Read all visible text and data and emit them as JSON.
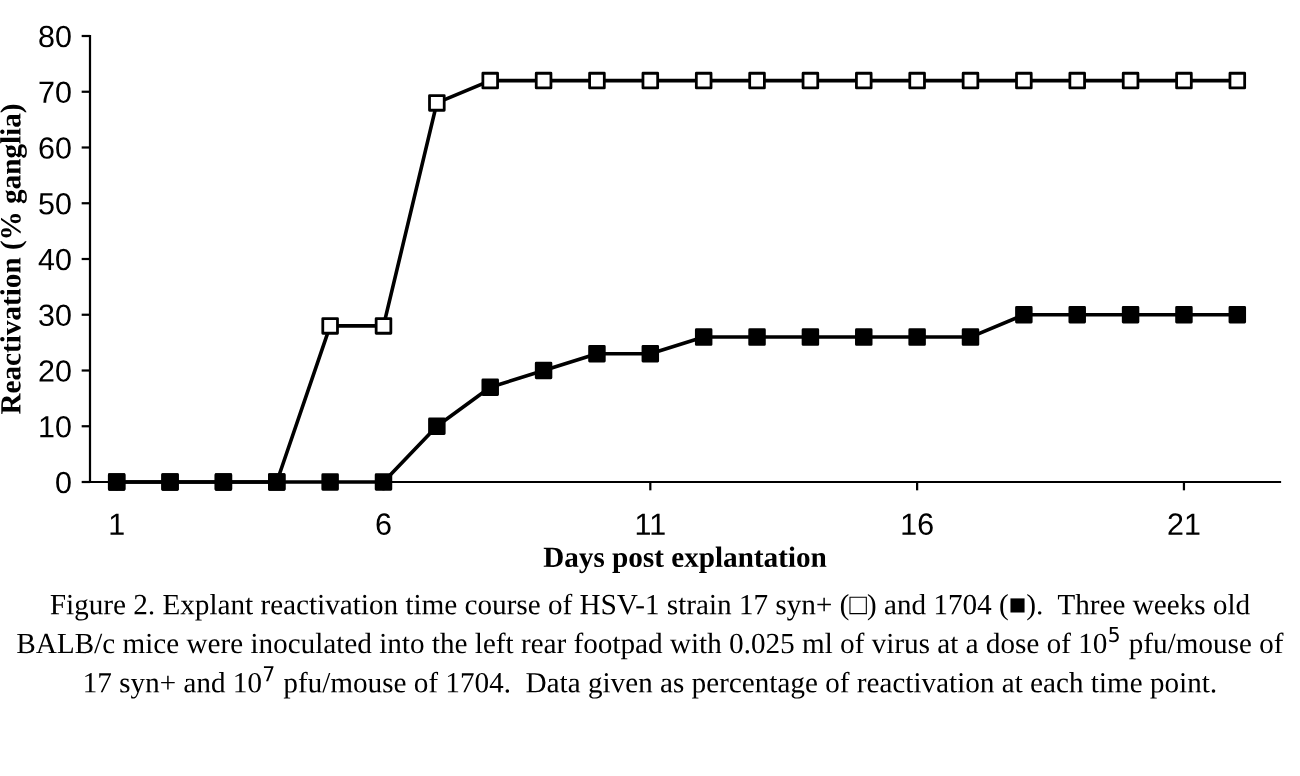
{
  "chart_data": {
    "type": "line",
    "xlabel": "Days post explantation",
    "ylabel": "Reactivation (% ganglia)",
    "x": [
      1,
      2,
      3,
      4,
      5,
      6,
      7,
      8,
      9,
      10,
      11,
      12,
      13,
      14,
      15,
      16,
      17,
      18,
      19,
      20,
      21,
      22
    ],
    "series": [
      {
        "color": "#000000",
        "colors": [
          "#ffffff",
          "#ffffff",
          "#ffffff",
          "#ffffff",
          "#ffffff",
          "#ffffff",
          "#ffffff",
          "#ffffff",
          "#ffffff",
          "#ffffff",
          "#ffffff",
          "#ffffff",
          "#ffffff",
          "#ffffff",
          "#ffffff",
          "#ffffff",
          "#ffffff",
          "#ffffff",
          "#ffffff",
          "#ffffff",
          "#ffffff",
          "#ffffff"
        ],
        "values": [
          0,
          0,
          0,
          0,
          28,
          28,
          68,
          72,
          72,
          72,
          72,
          72,
          72,
          72,
          72,
          72,
          72,
          72,
          72,
          72,
          72,
          72
        ]
      },
      {
        "color": "#000000",
        "values": [
          0,
          0,
          0,
          0,
          0,
          0,
          10,
          17,
          20,
          23,
          23,
          26,
          26,
          26,
          26,
          26,
          26,
          30,
          30,
          30,
          30,
          30
        ]
      }
    ],
    "xlim": [
      0.5,
      22.8
    ],
    "xticks": [
      1,
      6,
      11,
      16,
      21
    ],
    "ylim": [
      0,
      80
    ],
    "yticks": [
      0,
      10,
      20,
      30,
      40,
      50,
      60,
      70,
      80
    ],
    "grid": false,
    "marker": "square",
    "line_style": "solid",
    "annotations": [
      "Figure 2. Explant reactivation time course of HSV-1 strain 17 syn+ (□) and 1704 (■).  Three weeks old BALB/c mice were inoculated into the left rear footpad with 0.025 ml of virus at a dose of 10$^{5}$ pfu/mouse of 17 syn+ and 10$^{7}$ pfu/mouse of 1704.  Data given as percentage of reactivation at each time point."
    ]
  }
}
